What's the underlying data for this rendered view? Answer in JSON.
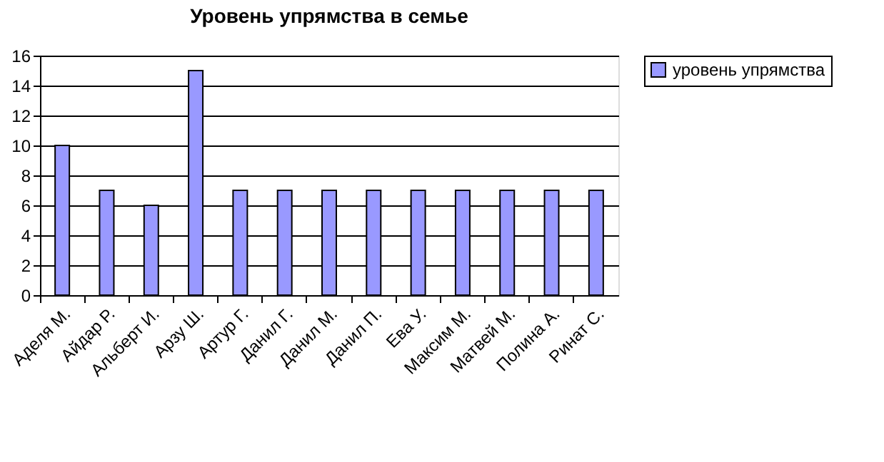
{
  "chart_data": {
    "type": "bar",
    "title": "Уровень упрямства в семье",
    "categories": [
      "Аделя М.",
      "Айдар Р.",
      "Альберт И.",
      "Арзу Ш.",
      "Артур Г.",
      "Данил Г.",
      "Данил М.",
      "Данил П.",
      "Ева У.",
      "Максим М.",
      "Матвей М.",
      "Полина А.",
      "Ринат С."
    ],
    "series": [
      {
        "name": "уровень упрямства",
        "color": "#9999ff",
        "values": [
          10,
          7,
          6,
          15,
          7,
          7,
          7,
          7,
          7,
          7,
          7,
          7,
          7
        ]
      }
    ],
    "ylim": [
      0,
      16
    ],
    "yticks": [
      0,
      2,
      4,
      6,
      8,
      10,
      12,
      14,
      16
    ],
    "grid": "y",
    "legend": "right"
  }
}
